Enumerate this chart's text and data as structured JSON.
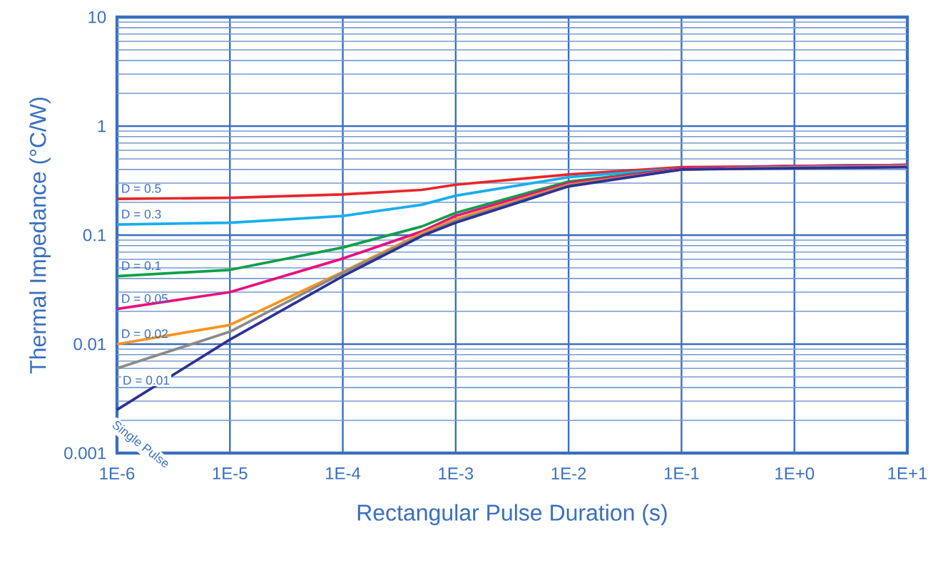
{
  "chart_data": {
    "type": "line",
    "xlabel": "Rectangular Pulse Duration (s)",
    "ylabel": "Thermal Impedance (°C/W)",
    "log": "xy",
    "grid": true,
    "line_style": "solid",
    "marker": "none",
    "xlim": [
      1e-06,
      10
    ],
    "ylim": [
      0.001,
      10
    ],
    "xticks": [
      {
        "value": 1e-06,
        "label": "1E-6"
      },
      {
        "value": 1e-05,
        "label": "1E-5"
      },
      {
        "value": 0.0001,
        "label": "1E-4"
      },
      {
        "value": 0.001,
        "label": "1E-3"
      },
      {
        "value": 0.01,
        "label": "1E-2"
      },
      {
        "value": 0.1,
        "label": "1E-1"
      },
      {
        "value": 1,
        "label": "1E+0"
      },
      {
        "value": 10,
        "label": "1E+1"
      }
    ],
    "yticks": [
      0.001,
      {
        "value": 0.002,
        "label": null
      },
      {
        "value": 0.003,
        "label": null
      },
      {
        "value": 0.004,
        "label": null
      },
      {
        "value": 0.005,
        "label": null
      },
      {
        "value": 0.006,
        "label": null
      },
      {
        "value": 0.007,
        "label": null
      },
      {
        "value": 0.008,
        "label": null
      },
      {
        "value": 0.009,
        "label": null
      },
      0.01,
      {
        "value": 0.02,
        "label": null
      },
      {
        "value": 0.03,
        "label": null
      },
      {
        "value": 0.04,
        "label": null
      },
      {
        "value": 0.05,
        "label": null
      },
      {
        "value": 0.06,
        "label": null
      },
      {
        "value": 0.07,
        "label": null
      },
      {
        "value": 0.08,
        "label": null
      },
      {
        "value": 0.09,
        "label": null
      },
      0.1,
      {
        "value": 0.2,
        "label": null
      },
      {
        "value": 0.3,
        "label": null
      },
      {
        "value": 0.4,
        "label": null
      },
      {
        "value": 0.5,
        "label": null
      },
      {
        "value": 0.6,
        "label": null
      },
      {
        "value": 0.7,
        "label": null
      },
      {
        "value": 0.8,
        "label": null
      },
      {
        "value": 0.9,
        "label": null
      },
      1,
      {
        "value": 2,
        "label": null
      },
      {
        "value": 3,
        "label": null
      },
      {
        "value": 4,
        "label": null
      },
      {
        "value": 5,
        "label": null
      },
      {
        "value": 6,
        "label": null
      },
      {
        "value": 7,
        "label": null
      },
      {
        "value": 8,
        "label": null
      },
      {
        "value": 9,
        "label": null
      },
      10
    ],
    "x": [
      1e-06,
      1e-05,
      0.0001,
      0.0005,
      0.001,
      0.01,
      0.1,
      1,
      10
    ],
    "series": [
      {
        "name": "D = 0.5",
        "color": "#e8262a",
        "values": [
          0.215,
          0.22,
          0.236,
          0.26,
          0.29,
          0.36,
          0.42,
          0.43,
          0.44
        ]
      },
      {
        "name": "D = 0.3",
        "color": "#1aadee",
        "values": [
          0.125,
          0.13,
          0.15,
          0.19,
          0.23,
          0.34,
          0.41,
          0.43,
          0.44
        ]
      },
      {
        "name": "D = 0.1",
        "color": "#0e9f4a",
        "values": [
          0.042,
          0.048,
          0.077,
          0.12,
          0.16,
          0.31,
          0.41,
          0.43,
          0.44
        ]
      },
      {
        "name": "D = 0.05",
        "color": "#e6127f",
        "values": [
          0.021,
          0.03,
          0.061,
          0.108,
          0.15,
          0.3,
          0.41,
          0.43,
          0.44
        ]
      },
      {
        "name": "D = 0.02",
        "color": "#f7941d",
        "values": [
          0.01,
          0.015,
          0.046,
          0.104,
          0.14,
          0.29,
          0.4,
          0.42,
          0.43
        ]
      },
      {
        "name": "D = 0.01",
        "color": "#8a8a8a",
        "values": [
          0.006,
          0.013,
          0.045,
          0.1,
          0.135,
          0.285,
          0.4,
          0.42,
          0.43
        ]
      },
      {
        "name": "Single Pulse",
        "color": "#2e3192",
        "values": [
          0.0025,
          0.011,
          0.042,
          0.098,
          0.13,
          0.28,
          0.4,
          0.41,
          0.42
        ]
      }
    ]
  }
}
